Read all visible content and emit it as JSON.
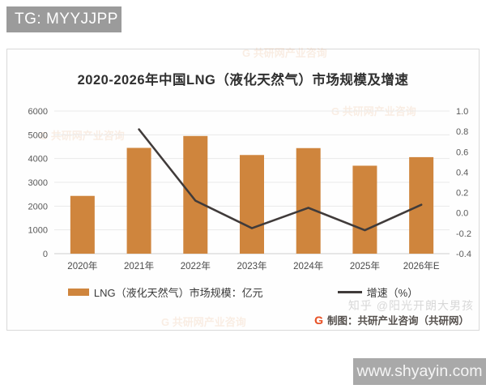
{
  "page": {
    "tg_badge": "TG: MYYJJPP",
    "site_badge": "www.shyayin.com",
    "zhihu_watermark": "知乎 @阳光开朗大男孩",
    "brand_watermark": "G 共研网产业咨询"
  },
  "footer": {
    "logo_letter": "G",
    "credit": "制图：共研产业咨询（共研网）"
  },
  "chart_data": {
    "type": "bar",
    "title": "2020-2026年中国LNG（液化天然气）市场规模及增速",
    "categories": [
      "2020年",
      "2021年",
      "2022年",
      "2023年",
      "2024年",
      "2025年",
      "2026年E"
    ],
    "series": [
      {
        "name": "LNG（液化天然气）市场规模：亿元",
        "type": "bar",
        "axis": "left",
        "color": "#cf853d",
        "values": [
          2430,
          4450,
          4950,
          4150,
          4440,
          3700,
          4060
        ]
      },
      {
        "name": "增速（%）",
        "type": "line",
        "axis": "right",
        "color": "#403b3a",
        "values": [
          null,
          0.82,
          0.12,
          -0.15,
          0.05,
          -0.17,
          0.08
        ]
      }
    ],
    "y_left": {
      "min": 0,
      "max": 6000,
      "step": 1000
    },
    "y_right": {
      "min": -0.4,
      "max": 1.0,
      "step": 0.2
    },
    "grid": "horizontal",
    "legend_position": "bottom",
    "colors": {
      "grid_line": "#eaeaea",
      "axis_line": "#cfcfcf",
      "tick_text": "#595959"
    }
  }
}
